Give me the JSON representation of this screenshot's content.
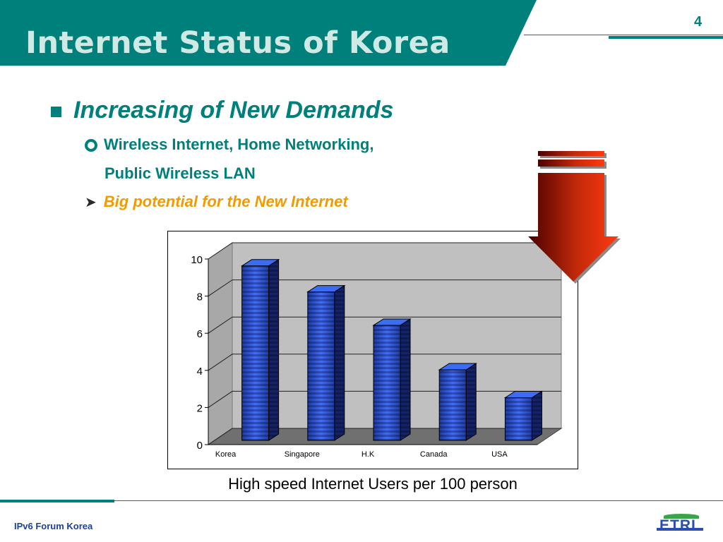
{
  "slide": {
    "title": "Internet Status of Korea",
    "page_number": "4",
    "bullet_main": "Increasing of New Demands",
    "sub_bullet_1_line1": "Wireless Internet, Home Networking,",
    "sub_bullet_1_line2": "Public Wireless LAN",
    "sub_bullet_2": "Big potential for the New Internet",
    "chart_caption": "High speed Internet Users per 100 person",
    "footer": "IPv6 Forum Korea",
    "logo_text": "ETRI"
  },
  "colors": {
    "teal": "#00807a",
    "orange": "#f29b00",
    "bar_blue": "#2e5ce6",
    "plot_wall": "#c0c0c0",
    "arrow_red": "#e63010"
  },
  "icons": [
    "square-bullet-icon",
    "ring-bullet-icon",
    "arrow-bullet-icon",
    "down-arrow-icon",
    "etri-logo"
  ],
  "chart_data": {
    "type": "bar",
    "categories": [
      "Korea",
      "Singapore",
      "H.K",
      "Canada",
      "USA"
    ],
    "values": [
      9.4,
      8.0,
      6.2,
      3.8,
      2.3
    ],
    "ylim": [
      0,
      10
    ],
    "yticks": [
      "0",
      "2",
      "4",
      "6",
      "8",
      "10"
    ],
    "grid": true,
    "style": "3d-cylinder"
  }
}
